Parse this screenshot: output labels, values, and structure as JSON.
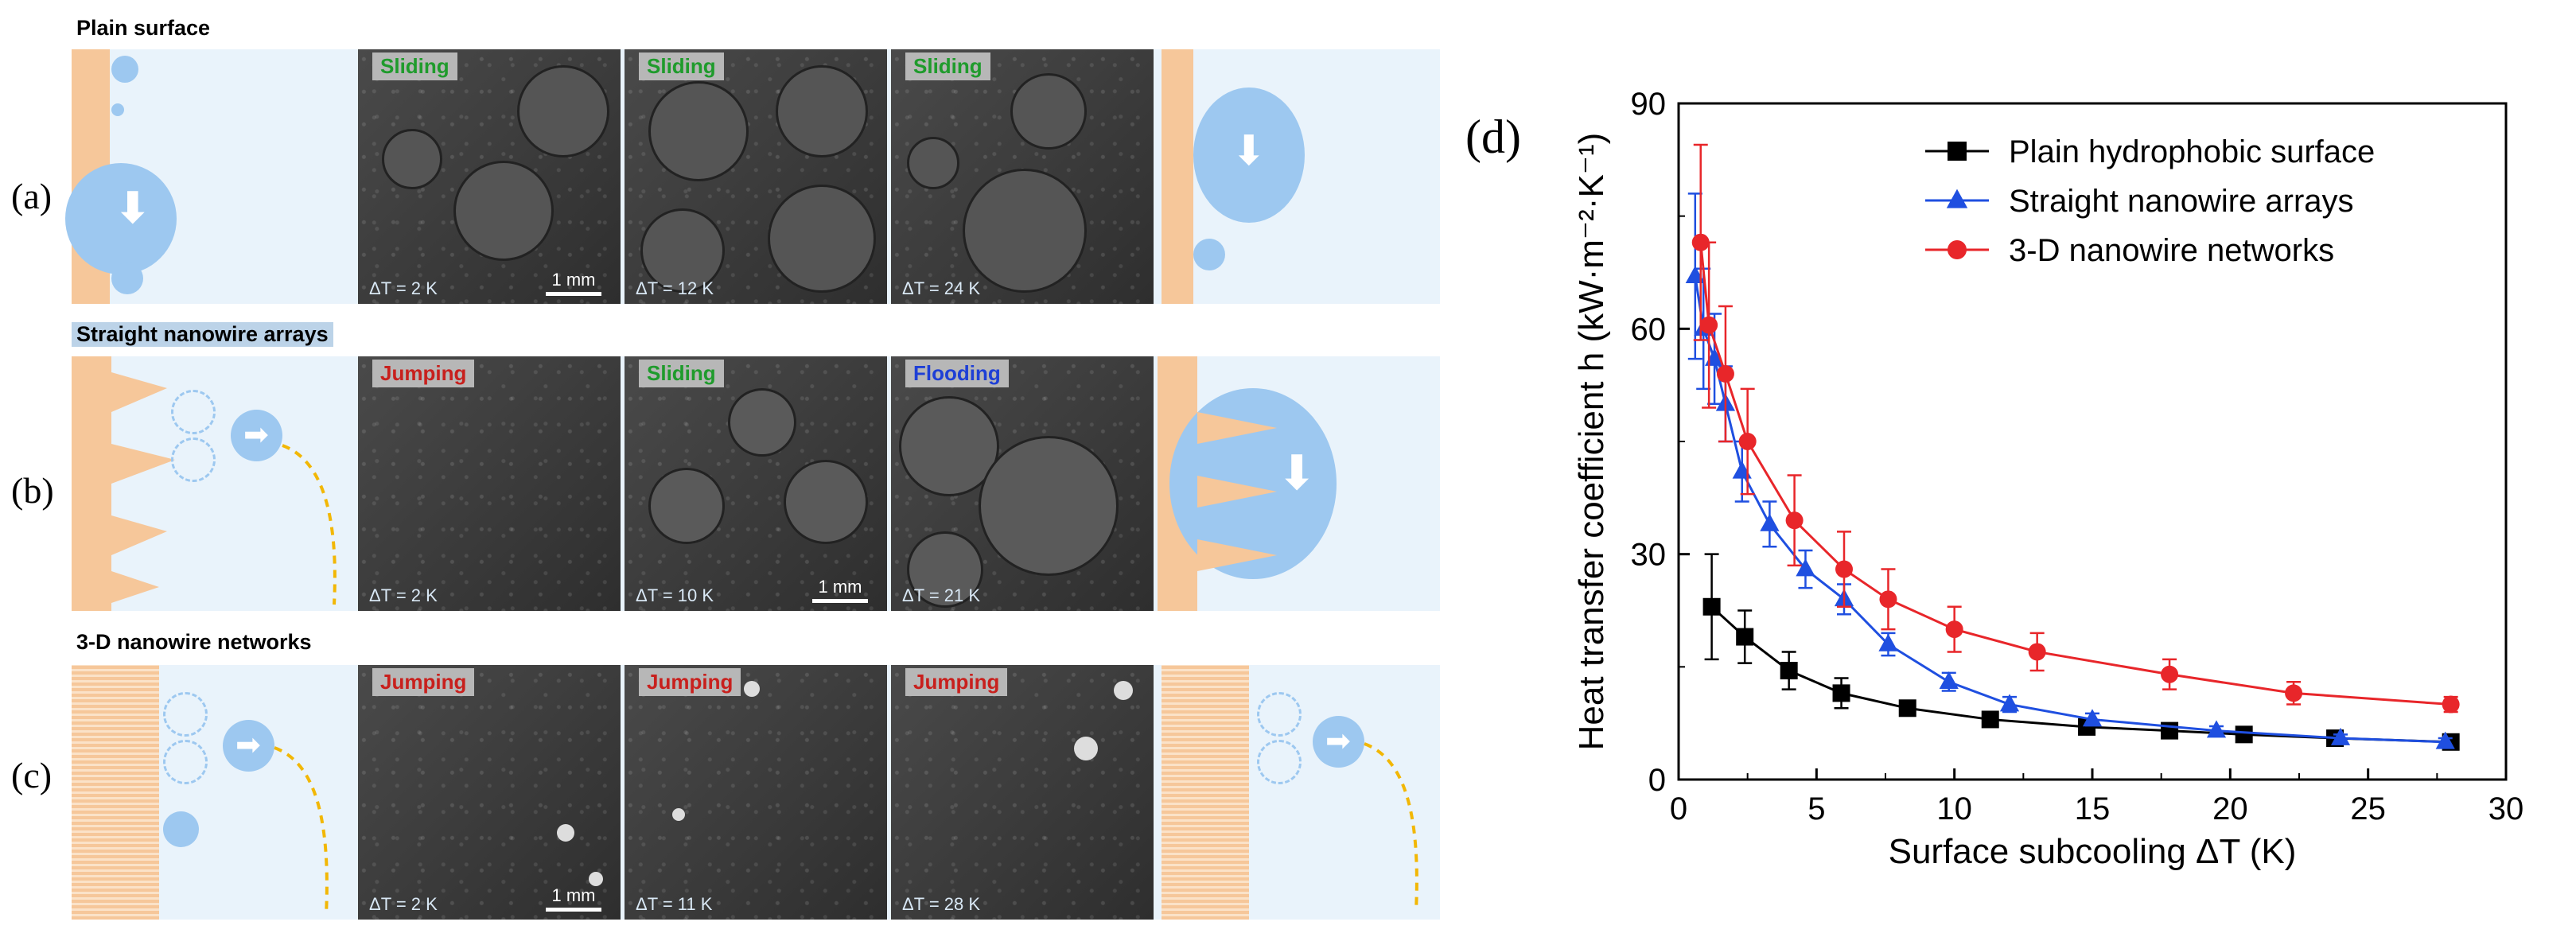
{
  "panels": {
    "a": {
      "letter": "(a)",
      "title": "Plain surface",
      "images": [
        {
          "mode": "Sliding",
          "dt": "ΔT = 2 K",
          "scale": "1 mm"
        },
        {
          "mode": "Sliding",
          "dt": "ΔT = 12 K"
        },
        {
          "mode": "Sliding",
          "dt": "ΔT = 24 K"
        }
      ]
    },
    "b": {
      "letter": "(b)",
      "title": "Straight nanowire arrays",
      "images": [
        {
          "mode": "Jumping",
          "dt": "ΔT = 2 K"
        },
        {
          "mode": "Sliding",
          "dt": "ΔT = 10 K",
          "scale": "1 mm"
        },
        {
          "mode": "Flooding",
          "dt": "ΔT = 21 K"
        }
      ]
    },
    "c": {
      "letter": "(c)",
      "title": "3-D nanowire networks",
      "images": [
        {
          "mode": "Jumping",
          "dt": "ΔT = 2 K",
          "scale": "1 mm"
        },
        {
          "mode": "Jumping",
          "dt": "ΔT = 11 K"
        },
        {
          "mode": "Jumping",
          "dt": "ΔT = 28 K"
        }
      ]
    },
    "d": {
      "letter": "(d)"
    }
  },
  "colors": {
    "sliding": "#1f9b2c",
    "jumping": "#c8201d",
    "flooding": "#1e3fd6",
    "droplet": "#9dc8f0",
    "surface": "#f6c79a",
    "trajectory": "#f2b705"
  },
  "chart_data": {
    "type": "line",
    "xlabel": "Surface subcooling ΔT (K)",
    "ylabel": "Heat transfer coefficient h (kW·m⁻²·K⁻¹)",
    "xlim": [
      0,
      30
    ],
    "ylim": [
      0,
      90
    ],
    "xticks": [
      "0",
      "5",
      "10",
      "15",
      "20",
      "25",
      "30"
    ],
    "yticks": [
      "0",
      "30",
      "60",
      "90"
    ],
    "legend_position": "top-right",
    "grid": false,
    "series": [
      {
        "name": "Plain hydrophobic surface",
        "color": "#000000",
        "marker": "square",
        "x": [
          1.2,
          2.4,
          4.0,
          5.9,
          8.3,
          11.3,
          14.8,
          17.8,
          20.5,
          23.8,
          28.0
        ],
        "y": [
          23,
          19,
          14.5,
          11.5,
          9.5,
          8,
          7,
          6.5,
          6,
          5.5,
          5
        ],
        "err": [
          7,
          3.5,
          2.5,
          2,
          1,
          0.8,
          0.7,
          0.6,
          0.5,
          0.5,
          0.5
        ]
      },
      {
        "name": "Straight nanowire arrays",
        "color": "#1f4fe0",
        "marker": "triangle",
        "x": [
          0.6,
          0.9,
          1.3,
          1.7,
          2.3,
          3.3,
          4.6,
          6.0,
          7.6,
          9.8,
          12.0,
          15.0,
          19.5,
          24.0,
          27.8
        ],
        "y": [
          67,
          60,
          56,
          50,
          41,
          34,
          28,
          24,
          18,
          13,
          10,
          8,
          6.5,
          5.5,
          5
        ],
        "err": [
          11,
          8,
          6,
          5,
          4,
          3,
          2.5,
          2,
          1.5,
          1.2,
          1,
          0.8,
          0.6,
          0.5,
          0.5
        ]
      },
      {
        "name": "3-D nanowire networks",
        "color": "#e8262a",
        "marker": "circle",
        "x": [
          0.8,
          1.1,
          1.7,
          2.5,
          4.2,
          6.0,
          7.6,
          10.0,
          13.0,
          17.8,
          22.3,
          28.0
        ],
        "y": [
          71.5,
          60.5,
          54,
          45,
          34.5,
          28,
          24,
          20,
          17,
          14,
          11.5,
          10
        ],
        "err": [
          13,
          11,
          9,
          7,
          6,
          5,
          4,
          3,
          2.5,
          2,
          1.5,
          1
        ]
      }
    ]
  }
}
